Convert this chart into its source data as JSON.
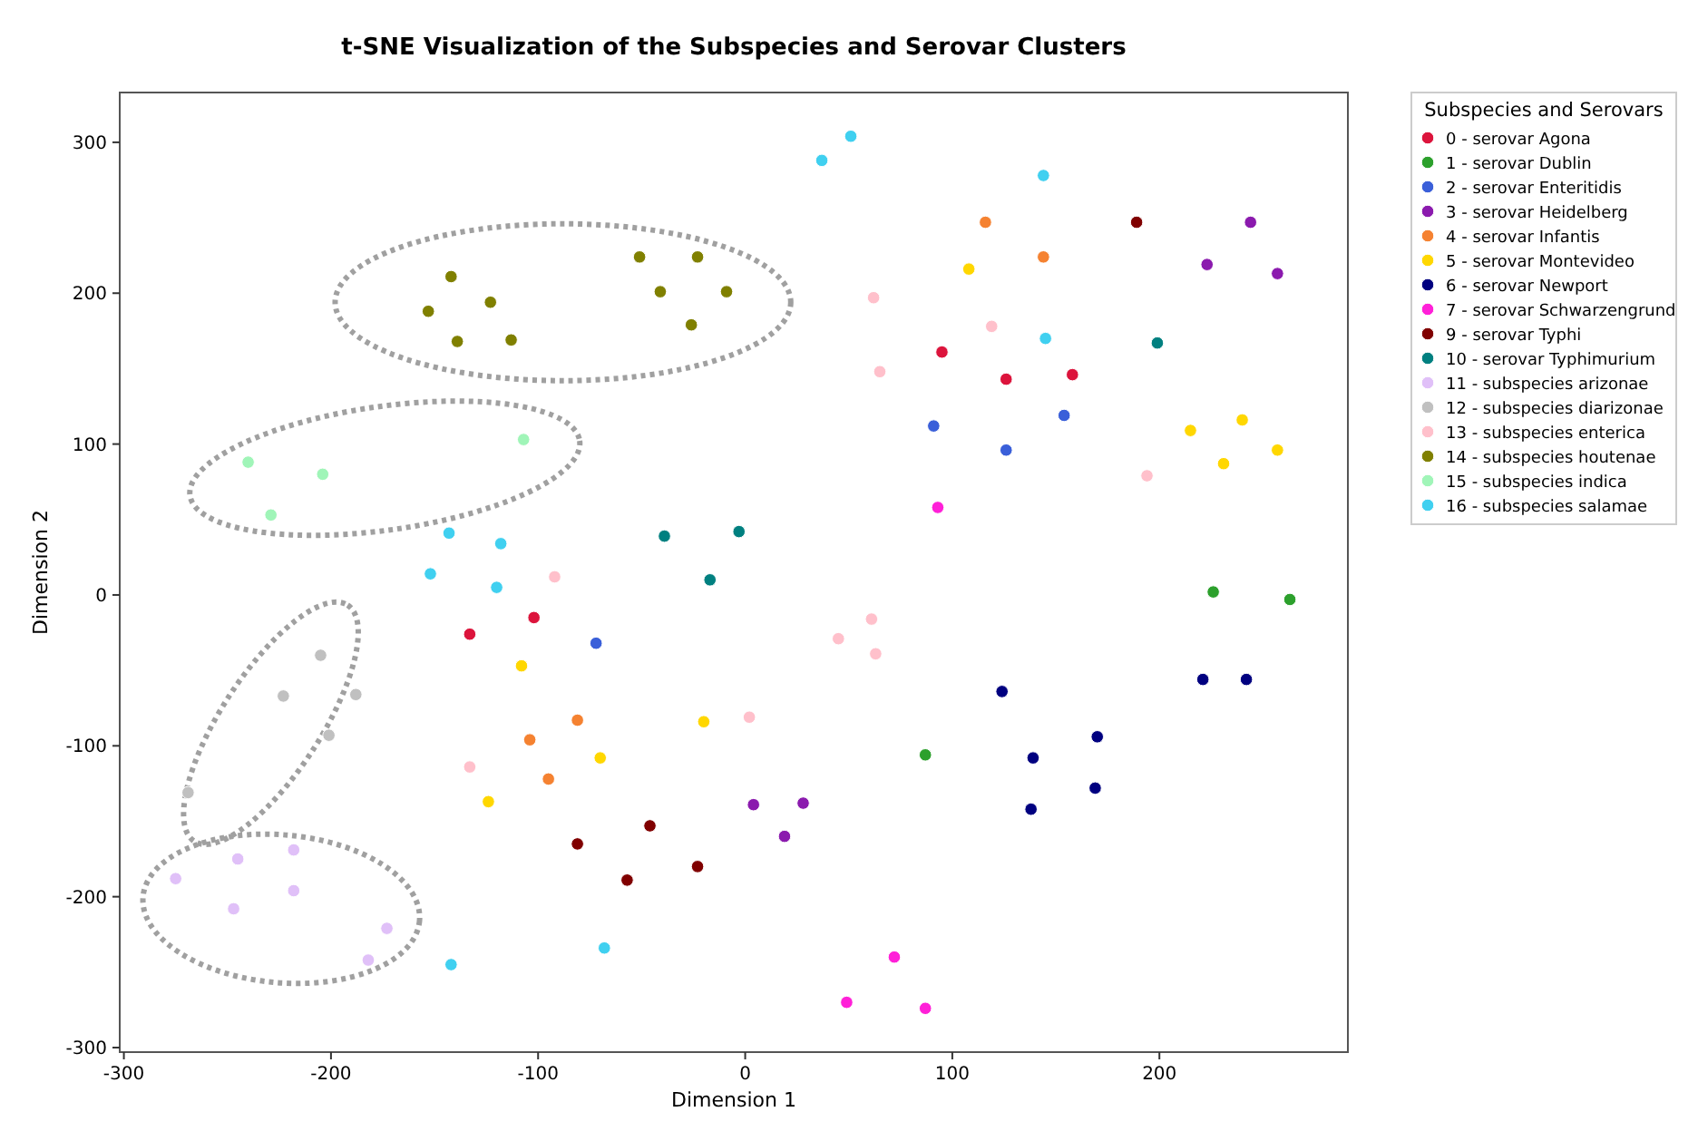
{
  "chart_data": {
    "type": "scatter",
    "title": "t-SNE Visualization of the Subspecies and Serovar Clusters",
    "xlabel": "Dimension 1",
    "ylabel": "Dimension 2",
    "legend_title": "Subspecies and Serovars",
    "legend": "right",
    "grid": false,
    "marker": "circle",
    "xlim": [
      -302,
      291
    ],
    "ylim": [
      -303,
      333
    ],
    "xticks": [
      -300,
      -200,
      -100,
      0,
      100,
      200
    ],
    "yticks": [
      -300,
      -200,
      -100,
      0,
      100,
      200,
      300
    ],
    "series": [
      {
        "name": "0 - serovar Agona",
        "color": "#dc143c",
        "x": [
          95,
          158,
          126,
          -133,
          -102
        ],
        "values": [
          161,
          146,
          143,
          -26,
          -15
        ]
      },
      {
        "name": "1 - serovar Dublin",
        "color": "#2ca02c",
        "x": [
          226,
          263,
          87
        ],
        "values": [
          2,
          -3,
          -106
        ]
      },
      {
        "name": "2 - serovar Enteritidis",
        "color": "#3a5fd9",
        "x": [
          91,
          126,
          154,
          -72
        ],
        "values": [
          112,
          96,
          119,
          -32
        ]
      },
      {
        "name": "3 - serovar Heidelberg",
        "color": "#8b1aae",
        "x": [
          244,
          223,
          257,
          4,
          28,
          19
        ],
        "values": [
          247,
          219,
          213,
          -139,
          -138,
          -160
        ]
      },
      {
        "name": "4 - serovar Infantis",
        "color": "#f58231",
        "x": [
          116,
          144,
          -81,
          -104,
          -95
        ],
        "values": [
          247,
          224,
          -83,
          -96,
          -122
        ]
      },
      {
        "name": "5 - serovar Montevideo",
        "color": "#ffd700",
        "x": [
          108,
          215,
          240,
          231,
          257,
          -108,
          -70,
          -124,
          -20
        ],
        "values": [
          216,
          109,
          116,
          87,
          96,
          -47,
          -108,
          -137,
          -84
        ]
      },
      {
        "name": "6 - serovar Newport",
        "color": "#000080",
        "x": [
          139,
          169,
          124,
          170,
          138,
          221,
          242
        ],
        "values": [
          -108,
          -128,
          -64,
          -94,
          -142,
          -56,
          -56
        ]
      },
      {
        "name": "7 - serovar Schwarzengrund",
        "color": "#ff20d8",
        "x": [
          93,
          72,
          49,
          87
        ],
        "values": [
          58,
          -240,
          -270,
          -274
        ]
      },
      {
        "name": "9 - serovar Typhi",
        "color": "#800000",
        "x": [
          189,
          -46,
          -81,
          -57,
          -23
        ],
        "values": [
          247,
          -153,
          -165,
          -189,
          -180
        ]
      },
      {
        "name": "10 - serovar Typhimurium",
        "color": "#008080",
        "x": [
          199,
          -3,
          -39,
          -17
        ],
        "values": [
          167,
          42,
          39,
          10
        ]
      },
      {
        "name": "11 - subspecies arizonae",
        "color": "#e0c0f8",
        "x": [
          -275,
          -245,
          -218,
          -247,
          -218,
          -173,
          -182
        ],
        "values": [
          -188,
          -175,
          -169,
          -208,
          -196,
          -221,
          -242
        ]
      },
      {
        "name": "12 - subspecies diarizonae",
        "color": "#c0c0c0",
        "x": [
          -205,
          -223,
          -188,
          -201,
          -269
        ],
        "values": [
          -40,
          -67,
          -66,
          -93,
          -131
        ]
      },
      {
        "name": "13 - subspecies enterica",
        "color": "#ffc0cb",
        "x": [
          62,
          119,
          65,
          194,
          -92,
          -133,
          2,
          61,
          45,
          63
        ],
        "values": [
          197,
          178,
          148,
          79,
          12,
          -114,
          -81,
          -16,
          -29,
          -39
        ]
      },
      {
        "name": "14 - subspecies houtenae",
        "color": "#808000",
        "x": [
          -142,
          -153,
          -123,
          -139,
          -113,
          -51,
          -23,
          -41,
          -9,
          -26
        ],
        "values": [
          211,
          188,
          194,
          168,
          169,
          224,
          224,
          201,
          201,
          179
        ]
      },
      {
        "name": "15 - subspecies indica",
        "color": "#a0f5b8",
        "x": [
          -240,
          -204,
          -229,
          -107
        ],
        "values": [
          88,
          80,
          53,
          103
        ]
      },
      {
        "name": "16 - subspecies salamae",
        "color": "#40d0f0",
        "x": [
          51,
          37,
          144,
          145,
          -143,
          -118,
          -152,
          -120,
          -142,
          -68
        ],
        "values": [
          304,
          288,
          278,
          170,
          41,
          34,
          14,
          5,
          -245,
          -234
        ]
      }
    ]
  }
}
